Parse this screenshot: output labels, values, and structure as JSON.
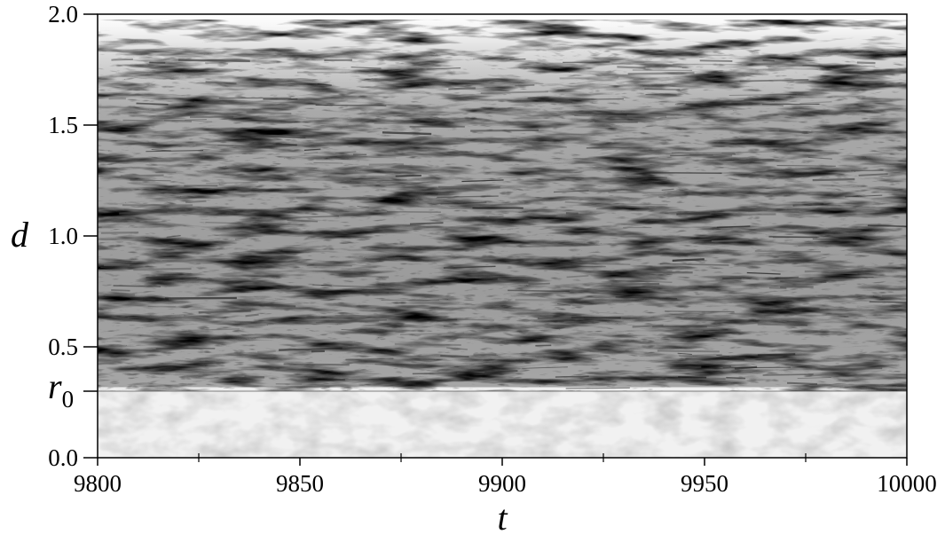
{
  "chart_data": {
    "type": "heatmap",
    "title": "",
    "xlabel": "t",
    "ylabel": "d",
    "xlim": [
      9800,
      10000
    ],
    "ylim": [
      0.0,
      2.0
    ],
    "x_ticks": [
      {
        "value": 9800,
        "label": "9800"
      },
      {
        "value": 9850,
        "label": "9850"
      },
      {
        "value": 9900,
        "label": "9900"
      },
      {
        "value": 9950,
        "label": "9950"
      },
      {
        "value": 10000,
        "label": "10000"
      }
    ],
    "y_ticks": [
      {
        "value": 0.0,
        "label": "0.0"
      },
      {
        "value": 0.5,
        "label": "0.5"
      },
      {
        "value": 1.0,
        "label": "1.0"
      },
      {
        "value": 1.5,
        "label": "1.5"
      },
      {
        "value": 2.0,
        "label": "2.0"
      }
    ],
    "x_minor_tick_step": 25,
    "annotation": {
      "label": "r",
      "subscript": "0",
      "value": 0.3
    },
    "colormap": "grayscale, white = low, black = high",
    "grid": false,
    "legend": "none"
  }
}
